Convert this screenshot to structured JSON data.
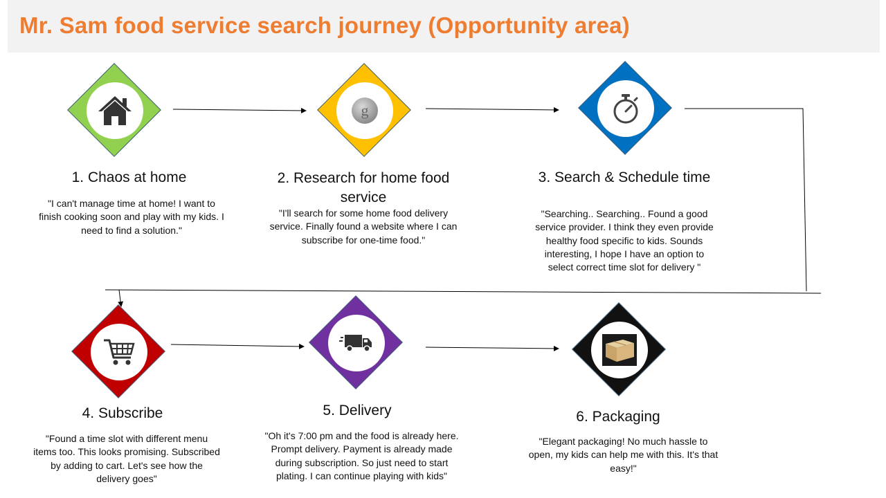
{
  "header": {
    "title": "Mr. Sam food service search journey (Opportunity area)"
  },
  "steps": [
    {
      "title": "1. Chaos at home",
      "color": "#92d050",
      "icon": "house-icon",
      "quote": "\"I can't manage time at home! I want to finish cooking soon and play with my kids. I need to find a solution.\""
    },
    {
      "title": "2. Research for home food service",
      "color": "#ffc000",
      "icon": "google-icon",
      "quote": "\"I'll search for some home food delivery service. Finally found a website where I can subscribe for one-time food.\""
    },
    {
      "title": "3. Search & Schedule time",
      "color": "#0070c0",
      "icon": "stopwatch-icon",
      "quote": "\"Searching.. Searching.. Found a good service provider. I think they even provide healthy food specific to kids. Sounds interesting, I hope I have an option to select correct time slot for delivery \""
    },
    {
      "title": "4. Subscribe",
      "color": "#c00000",
      "icon": "shopping-cart-icon",
      "quote": "\"Found a time slot with different menu items too. This looks promising. Subscribed by adding to cart. Let's see how the delivery goes\""
    },
    {
      "title": "5. Delivery",
      "color": "#7030a0",
      "icon": "delivery-truck-icon",
      "quote": "\"Oh it's 7:00 pm and the food is already here. Prompt delivery. Payment is already made during subscription. So just need to start plating. I can continue playing with kids\""
    },
    {
      "title": "6. Packaging",
      "color": "#111111",
      "icon": "package-box-icon",
      "quote": "\"Elegant packaging! No much hassle to open, my kids can help me with this. It's that easy!\""
    }
  ]
}
